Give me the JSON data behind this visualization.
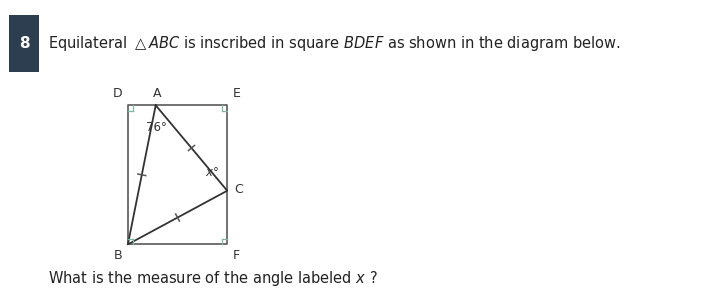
{
  "title_number": "8",
  "title_number_bg": "#2d3e50",
  "bg_color": "#ffffff",
  "square_color": "#666666",
  "triangle_color": "#333333",
  "right_angle_color": "#7ab8a0",
  "label_color": "#333333",
  "tick_color": "#555555",
  "B": [
    0.0,
    0.0
  ],
  "D": [
    0.0,
    1.4
  ],
  "E": [
    1.0,
    1.4
  ],
  "F": [
    1.0,
    0.0
  ],
  "A": [
    0.28,
    1.4
  ],
  "C": [
    1.0,
    0.54
  ],
  "angle_label": "76°",
  "x_label": "x°",
  "font_size_title": 10.5,
  "font_size_labels": 9,
  "font_size_angle": 8.5,
  "font_size_question": 10.5,
  "ra_size": 0.055
}
